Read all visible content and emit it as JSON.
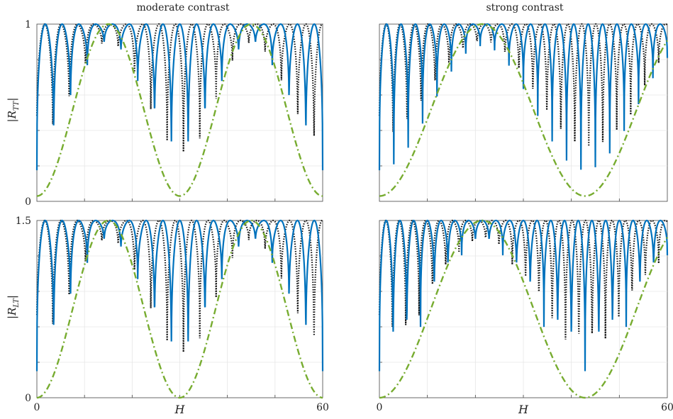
{
  "column_titles": [
    "moderate contrast",
    "strong contrast"
  ],
  "row_labels": [
    "|R_TT|",
    "|R_LT|"
  ],
  "colors": {
    "blue": "#0072BD",
    "dotted": "#111111",
    "dashed": "#77AC30",
    "grid": "#e6e6e6",
    "axis": "#444444"
  },
  "chart_data": [
    {
      "type": "line",
      "panel": "top-left",
      "title": "moderate contrast",
      "xlabel": "",
      "ylabel": "|R_TT|",
      "xlim": [
        0,
        60
      ],
      "ylim": [
        0,
        1.0
      ],
      "x_tick_labels": [],
      "y_tick_labels": [
        "0",
        "1"
      ],
      "params": {
        "lo": 0.03,
        "hi": 1.0,
        "oscillations": 17,
        "env_periods": 2.0,
        "env_phase": 0.0
      },
      "series": [
        {
          "style": "solid"
        },
        {
          "style": "dotted"
        },
        {
          "style": "dashed"
        }
      ]
    },
    {
      "type": "line",
      "panel": "top-right",
      "title": "strong contrast",
      "xlabel": "",
      "ylabel": "",
      "xlim": [
        0,
        60
      ],
      "ylim": [
        0,
        1.0
      ],
      "x_tick_labels": [],
      "y_tick_labels": [],
      "params": {
        "lo": 0.03,
        "hi": 1.0,
        "oscillations": 20,
        "env_periods": 1.4,
        "env_phase": 0.0
      },
      "series": [
        {
          "style": "solid"
        },
        {
          "style": "dotted"
        },
        {
          "style": "dashed"
        }
      ]
    },
    {
      "type": "line",
      "panel": "bottom-left",
      "title": "",
      "xlabel": "H",
      "ylabel": "|R_LT|",
      "xlim": [
        0,
        60
      ],
      "ylim": [
        0,
        1.5
      ],
      "x_tick_labels": [
        "0",
        "60"
      ],
      "y_tick_labels": [
        "0",
        "1.5"
      ],
      "params": {
        "lo": 0.0,
        "hi": 1.5,
        "oscillations": 17,
        "env_periods": 2.0,
        "env_phase": 0.0
      },
      "series": [
        {
          "style": "solid"
        },
        {
          "style": "dotted"
        },
        {
          "style": "dashed"
        }
      ]
    },
    {
      "type": "line",
      "panel": "bottom-right",
      "title": "",
      "xlabel": "H",
      "ylabel": "",
      "xlim": [
        0,
        60
      ],
      "ylim": [
        0,
        1.5
      ],
      "x_tick_labels": [
        "0",
        "60"
      ],
      "y_tick_labels": [],
      "params": {
        "lo": 0.0,
        "hi": 1.5,
        "oscillations": 21,
        "env_periods": 1.4,
        "env_phase": 0.0
      },
      "series": [
        {
          "style": "solid"
        },
        {
          "style": "dotted"
        },
        {
          "style": "dashed"
        }
      ]
    }
  ]
}
